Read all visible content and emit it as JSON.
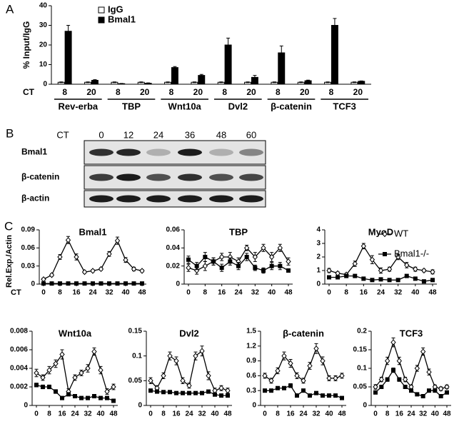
{
  "panel_labels": [
    "A",
    "B",
    "C"
  ],
  "blot": {
    "ct_label": "CT",
    "times": [
      "0",
      "12",
      "24",
      "36",
      "48",
      "60"
    ],
    "rows": [
      "Bmal1",
      "β-catenin",
      "β-actin"
    ]
  },
  "chart_data": [
    {
      "type": "bar",
      "y_label": "% Input/IgG",
      "x_label": "CT",
      "categories": [
        "8",
        "20",
        "8",
        "20",
        "8",
        "20",
        "8",
        "20",
        "8",
        "20",
        "8",
        "20"
      ],
      "groups": [
        "Rev-erba",
        "TBP",
        "Wnt10a",
        "Dvl2",
        "β-catenin",
        "TCF3"
      ],
      "ylim": [
        0,
        40
      ],
      "yticks": [
        0,
        10,
        20,
        30,
        40
      ],
      "legend": "upper left",
      "series": [
        {
          "name": "IgG",
          "color": "#ffffff",
          "values": [
            1,
            1,
            1,
            1,
            1,
            1,
            1,
            1,
            1,
            1,
            1,
            1
          ],
          "errors": [
            0.2,
            0.2,
            0.2,
            0.2,
            0.2,
            0.2,
            0.2,
            0.2,
            0.2,
            0.2,
            0.2,
            0.2
          ]
        },
        {
          "name": "Bmal1",
          "color": "#000000",
          "values": [
            27,
            2,
            0.3,
            0.5,
            8.5,
            4.5,
            20,
            3.5,
            16,
            1.8,
            30,
            1.5
          ],
          "errors": [
            3,
            0.3,
            0.1,
            0.2,
            0.5,
            0.5,
            3.5,
            1,
            3.5,
            0.3,
            3.5,
            0.2
          ]
        }
      ]
    },
    {
      "type": "line",
      "title": "Bmal1",
      "y_label": "Rel.Exp./Actin",
      "x_label": "CT",
      "x": [
        0,
        4,
        8,
        12,
        16,
        20,
        24,
        28,
        32,
        36,
        40,
        44,
        48
      ],
      "xlim": [
        0,
        48
      ],
      "xticks": [
        0,
        8,
        16,
        24,
        32,
        40,
        48
      ],
      "ylim": [
        0,
        0.09
      ],
      "yticks": [
        0,
        0.03,
        0.06,
        0.09
      ],
      "series": [
        {
          "color": "#ffffff",
          "marker": "diamond",
          "values": [
            0.008,
            0.015,
            0.045,
            0.073,
            0.045,
            0.02,
            0.022,
            0.025,
            0.05,
            0.072,
            0.04,
            0.025,
            0.022
          ],
          "errors": [
            0.002,
            0.002,
            0.004,
            0.006,
            0.005,
            0.002,
            0.002,
            0.002,
            0.004,
            0.006,
            0.004,
            0.003,
            0.002
          ]
        },
        {
          "color": "#000000",
          "marker": "square",
          "values": [
            0.001,
            0.001,
            0.001,
            0.001,
            0.001,
            0.001,
            0.001,
            0.001,
            0.001,
            0.001,
            0.001,
            0.001,
            0.001
          ],
          "errors": [
            0.0005,
            0.0005,
            0.0005,
            0.0005,
            0.0005,
            0.0005,
            0.0005,
            0.0005,
            0.0005,
            0.0005,
            0.0005,
            0.0005,
            0.0005
          ]
        }
      ]
    },
    {
      "type": "line",
      "title": "TBP",
      "x": [
        0,
        4,
        8,
        12,
        16,
        20,
        24,
        28,
        32,
        36,
        40,
        44,
        48
      ],
      "xlim": [
        0,
        48
      ],
      "xticks": [
        0,
        8,
        16,
        24,
        32,
        40,
        48
      ],
      "ylim": [
        0,
        0.06
      ],
      "yticks": [
        0,
        0.02,
        0.04,
        0.06
      ],
      "series": [
        {
          "color": "#ffffff",
          "marker": "diamond",
          "values": [
            0.018,
            0.015,
            0.02,
            0.025,
            0.03,
            0.03,
            0.025,
            0.04,
            0.03,
            0.04,
            0.03,
            0.04,
            0.025
          ],
          "errors": [
            0.004,
            0.004,
            0.005,
            0.004,
            0.004,
            0.005,
            0.004,
            0.003,
            0.005,
            0.004,
            0.005,
            0.004,
            0.004
          ]
        },
        {
          "color": "#000000",
          "marker": "square",
          "values": [
            0.027,
            0.02,
            0.03,
            0.025,
            0.018,
            0.025,
            0.02,
            0.03,
            0.018,
            0.015,
            0.02,
            0.02,
            0.015
          ],
          "errors": [
            0.004,
            0.004,
            0.005,
            0.004,
            0.004,
            0.004,
            0.004,
            0.004,
            0.003,
            0.003,
            0.004,
            0.004,
            0.002
          ]
        }
      ]
    },
    {
      "type": "line",
      "title": "MyoD",
      "legend": "upper right",
      "x": [
        0,
        4,
        8,
        12,
        16,
        20,
        24,
        28,
        32,
        36,
        40,
        44,
        48
      ],
      "xlim": [
        0,
        48
      ],
      "xticks": [
        0,
        8,
        16,
        24,
        32,
        40,
        48
      ],
      "ylim": [
        0,
        4
      ],
      "yticks": [
        0,
        1,
        2,
        3,
        4
      ],
      "series": [
        {
          "name": "WT",
          "color": "#ffffff",
          "marker": "diamond",
          "values": [
            1,
            0.8,
            0.7,
            1.5,
            2.8,
            1.8,
            1,
            1.1,
            2,
            1.4,
            1.1,
            1,
            0.9
          ],
          "errors": [
            0.15,
            0.1,
            0.1,
            0.2,
            0.2,
            0.3,
            0.2,
            0.15,
            0.2,
            0.2,
            0.15,
            0.1,
            0.15
          ]
        },
        {
          "name": "Bmal1-/-",
          "color": "#000000",
          "marker": "square",
          "values": [
            0.5,
            0.5,
            0.6,
            0.6,
            0.4,
            0.3,
            0.35,
            0.3,
            0.3,
            0.6,
            0.4,
            0.2,
            0.3
          ],
          "errors": [
            0.1,
            0.1,
            0.1,
            0.1,
            0.1,
            0.05,
            0.05,
            0.05,
            0.05,
            0.1,
            0.1,
            0.05,
            0.05
          ]
        }
      ]
    },
    {
      "type": "line",
      "title": "Wnt10a",
      "x": [
        0,
        4,
        8,
        12,
        16,
        20,
        24,
        28,
        32,
        36,
        40,
        44,
        48
      ],
      "xlim": [
        0,
        48
      ],
      "xticks": [
        0,
        8,
        16,
        24,
        32,
        40,
        48
      ],
      "ylim": [
        0,
        0.008
      ],
      "yticks": [
        0,
        0.002,
        0.004,
        0.006,
        0.008
      ],
      "series": [
        {
          "color": "#ffffff",
          "marker": "diamond",
          "values": [
            0.0035,
            0.003,
            0.0038,
            0.0045,
            0.0055,
            0.0015,
            0.003,
            0.0035,
            0.004,
            0.0058,
            0.0038,
            0.0015,
            0.002
          ],
          "errors": [
            0.0004,
            0.0003,
            0.0004,
            0.0004,
            0.0005,
            0.0003,
            0.0003,
            0.0003,
            0.0004,
            0.0004,
            0.0004,
            0.0003,
            0.0003
          ]
        },
        {
          "color": "#000000",
          "marker": "square",
          "values": [
            0.0022,
            0.002,
            0.002,
            0.0015,
            0.0008,
            0.0012,
            0.001,
            0.0008,
            0.0008,
            0.001,
            0.0008,
            0.0008,
            0.0005
          ],
          "errors": [
            0.0002,
            0.0002,
            0.0002,
            0.0002,
            0.0001,
            0.0001,
            0.0001,
            0.0001,
            0.0001,
            0.0001,
            0.0001,
            0.0001,
            0.0001
          ]
        }
      ]
    },
    {
      "type": "line",
      "title": "Dvl2",
      "x": [
        0,
        4,
        8,
        12,
        16,
        20,
        24,
        28,
        32,
        36,
        40,
        44,
        48
      ],
      "xlim": [
        0,
        48
      ],
      "xticks": [
        0,
        8,
        16,
        24,
        32,
        40,
        48
      ],
      "ylim": [
        0,
        0.15
      ],
      "yticks": [
        0,
        0.05,
        0.1,
        0.15
      ],
      "series": [
        {
          "color": "#ffffff",
          "marker": "diamond",
          "values": [
            0.05,
            0.035,
            0.06,
            0.1,
            0.09,
            0.05,
            0.04,
            0.1,
            0.11,
            0.06,
            0.03,
            0.035,
            0.03
          ],
          "errors": [
            0.006,
            0.005,
            0.006,
            0.008,
            0.008,
            0.006,
            0.005,
            0.008,
            0.01,
            0.008,
            0.005,
            0.005,
            0.005
          ]
        },
        {
          "color": "#000000",
          "marker": "square",
          "values": [
            0.03,
            0.028,
            0.027,
            0.027,
            0.025,
            0.025,
            0.025,
            0.025,
            0.025,
            0.028,
            0.022,
            0.02,
            0.02
          ],
          "errors": [
            0.003,
            0.003,
            0.003,
            0.003,
            0.003,
            0.003,
            0.003,
            0.003,
            0.003,
            0.003,
            0.003,
            0.003,
            0.003
          ]
        }
      ]
    },
    {
      "type": "line",
      "title": "β-catenin",
      "x": [
        0,
        4,
        8,
        12,
        16,
        20,
        24,
        28,
        32,
        36,
        40,
        44,
        48
      ],
      "xlim": [
        0,
        48
      ],
      "xticks": [
        0,
        8,
        16,
        24,
        32,
        40,
        48
      ],
      "ylim": [
        0,
        1.5
      ],
      "yticks": [
        0,
        0.3,
        0.6,
        0.9,
        1.2,
        1.5
      ],
      "series": [
        {
          "color": "#ffffff",
          "marker": "diamond",
          "values": [
            0.6,
            0.5,
            0.7,
            1.0,
            0.85,
            0.6,
            0.5,
            0.8,
            1.15,
            0.9,
            0.55,
            0.55,
            0.6
          ],
          "errors": [
            0.05,
            0.05,
            0.06,
            0.08,
            0.08,
            0.06,
            0.05,
            0.07,
            0.1,
            0.08,
            0.05,
            0.05,
            0.05
          ]
        },
        {
          "color": "#000000",
          "marker": "square",
          "values": [
            0.3,
            0.3,
            0.35,
            0.35,
            0.4,
            0.2,
            0.3,
            0.2,
            0.25,
            0.2,
            0.2,
            0.2,
            0.15
          ],
          "errors": [
            0.03,
            0.03,
            0.03,
            0.03,
            0.04,
            0.02,
            0.03,
            0.02,
            0.02,
            0.02,
            0.02,
            0.02,
            0.02
          ]
        }
      ]
    },
    {
      "type": "line",
      "title": "TCF3",
      "x": [
        0,
        4,
        8,
        12,
        16,
        20,
        24,
        28,
        32,
        36,
        40,
        44,
        48
      ],
      "xlim": [
        0,
        48
      ],
      "xticks": [
        0,
        8,
        16,
        24,
        32,
        40,
        48
      ],
      "ylim": [
        0,
        0.2
      ],
      "yticks": [
        0,
        0.05,
        0.1,
        0.15,
        0.2
      ],
      "series": [
        {
          "color": "#ffffff",
          "marker": "diamond",
          "values": [
            0.05,
            0.07,
            0.12,
            0.17,
            0.12,
            0.07,
            0.05,
            0.1,
            0.145,
            0.09,
            0.05,
            0.045,
            0.05
          ],
          "errors": [
            0.006,
            0.006,
            0.01,
            0.012,
            0.01,
            0.006,
            0.005,
            0.008,
            0.01,
            0.008,
            0.005,
            0.005,
            0.005
          ]
        },
        {
          "color": "#000000",
          "marker": "square",
          "values": [
            0.035,
            0.05,
            0.07,
            0.095,
            0.07,
            0.05,
            0.04,
            0.03,
            0.025,
            0.04,
            0.04,
            0.025,
            0.035
          ],
          "errors": [
            0.004,
            0.004,
            0.005,
            0.006,
            0.005,
            0.004,
            0.004,
            0.003,
            0.003,
            0.004,
            0.004,
            0.003,
            0.003
          ]
        }
      ]
    }
  ]
}
